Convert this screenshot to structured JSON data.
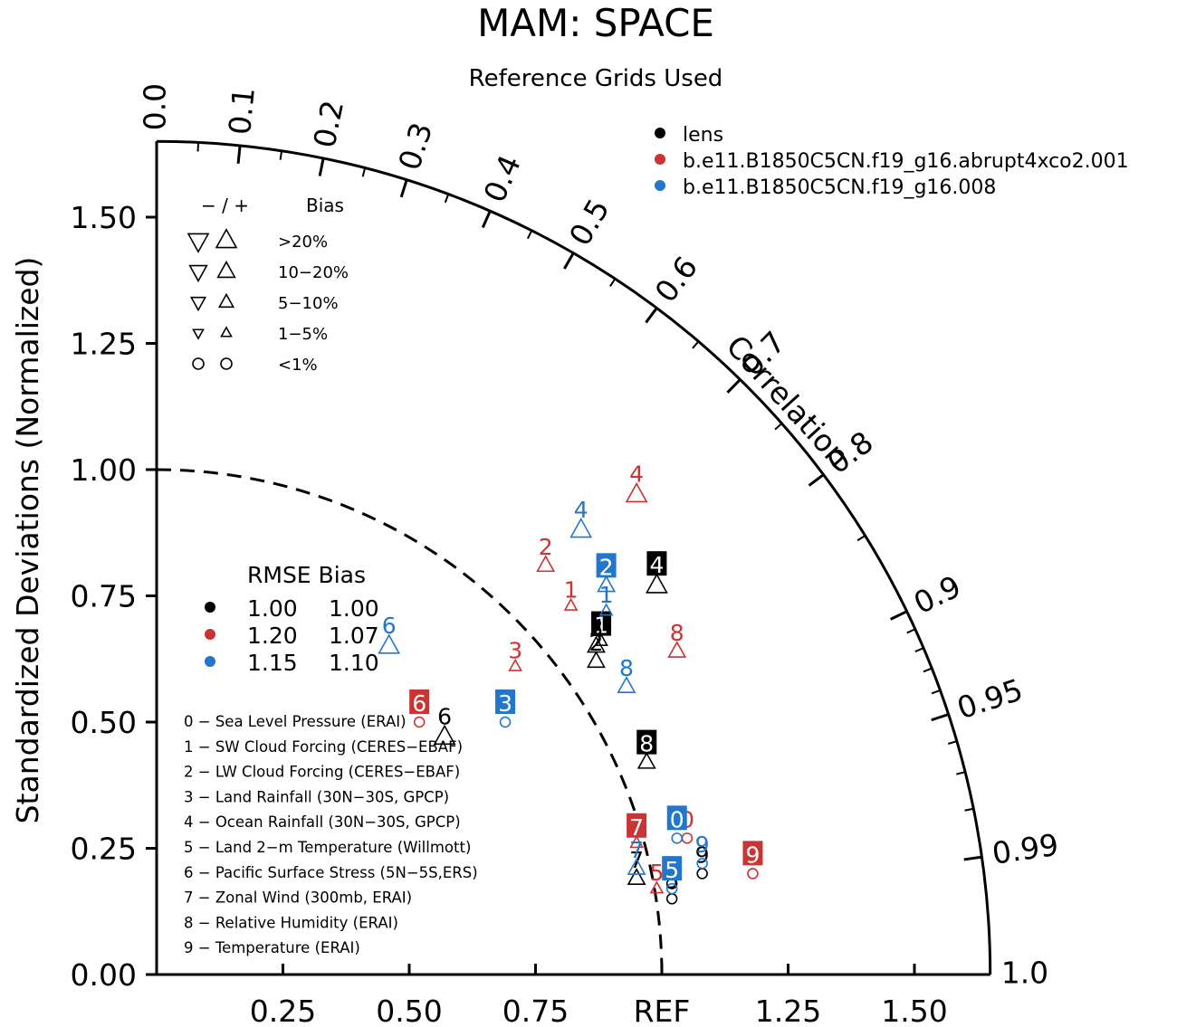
{
  "chart_data": {
    "type": "scatter",
    "title": "MAM: SPACE",
    "subtitle": "Reference Grids Used",
    "ylabel": "Standardized Deviations (Normalized)",
    "correlation_label": "Correlation",
    "ref_label": "REF",
    "ylim": [
      0,
      1.65
    ],
    "xlim": [
      0,
      1.65
    ],
    "y_ticks": [
      "0.00",
      "0.25",
      "0.50",
      "0.75",
      "1.00",
      "1.25",
      "1.50"
    ],
    "x_ticks": [
      "0.25",
      "0.50",
      "0.75",
      "1.25",
      "1.50"
    ],
    "correlation_ticks": [
      "0.0",
      "0.1",
      "0.2",
      "0.3",
      "0.4",
      "0.5",
      "0.6",
      "0.7",
      "0.8",
      "0.9",
      "0.95",
      "0.99",
      "1.0"
    ],
    "ref_radius": 1.0,
    "colors": {
      "lens": "#000000",
      "abrupt": "#cc3333",
      "ctrl": "#2277cc"
    },
    "legend": [
      {
        "label": "lens",
        "color": "#000000"
      },
      {
        "label": "b.e11.B1850C5CN.f19_g16.abrupt4xco2.001",
        "color": "#cc3333"
      },
      {
        "label": "b.e11.B1850C5CN.f19_g16.008",
        "color": "#2277cc"
      }
    ],
    "bias_legend": {
      "header_sign": "−  /  +",
      "header_label": "Bias",
      "rows": [
        {
          "label": ">20%",
          "symbol": "tri",
          "size": 1.0
        },
        {
          "label": "10−20%",
          "symbol": "tri",
          "size": 0.85
        },
        {
          "label": "5−10%",
          "symbol": "tri",
          "size": 0.7
        },
        {
          "label": "1−5%",
          "symbol": "tri",
          "size": 0.5
        },
        {
          "label": "<1%",
          "symbol": "circle",
          "size": 0.7
        }
      ]
    },
    "rmse_table": {
      "header": "RMSE Bias",
      "rows": [
        {
          "color": "#000000",
          "rmse": "1.00",
          "bias": "1.00"
        },
        {
          "color": "#cc3333",
          "rmse": "1.20",
          "bias": "1.07"
        },
        {
          "color": "#2277cc",
          "rmse": "1.15",
          "bias": "1.10"
        }
      ]
    },
    "variables": [
      "0 − Sea Level Pressure (ERAI)",
      "1 − SW Cloud Forcing (CERES−EBAF)",
      "2 − LW Cloud Forcing (CERES−EBAF)",
      "3 − Land Rainfall (30N−30S, GPCP)",
      "4 − Ocean Rainfall (30N−30S, GPCP)",
      "5 − Land 2−m Temperature (Willmott)",
      "6 − Pacific Surface Stress (5N−5S,ERS)",
      "7 − Zonal Wind (300mb, ERAI)",
      "8 − Relative Humidity (ERAI)",
      "9 − Temperature (ERAI)"
    ],
    "series": [
      {
        "key": "lens",
        "points": [
          {
            "label": "0",
            "x": 1.02,
            "y": 0.18,
            "marker": "circle",
            "bias": "-",
            "size": 0.7,
            "boxed": false
          },
          {
            "label": "1",
            "x": 0.88,
            "y": 0.66,
            "marker": "tri",
            "bias": "+",
            "size": 0.5,
            "boxed": true
          },
          {
            "label": "2",
            "x": 0.87,
            "y": 0.62,
            "marker": "tri",
            "bias": "+",
            "size": 0.7,
            "boxed": false
          },
          {
            "label": "3",
            "x": 0.87,
            "y": 0.65,
            "marker": "tri",
            "bias": "+",
            "size": 0.7,
            "boxed": false
          },
          {
            "label": "4",
            "x": 0.99,
            "y": 0.77,
            "marker": "tri",
            "bias": "+",
            "size": 0.85,
            "boxed": true
          },
          {
            "label": "5",
            "x": 1.02,
            "y": 0.15,
            "marker": "circle",
            "bias": "-",
            "size": 0.7,
            "boxed": false
          },
          {
            "label": "6",
            "x": 0.57,
            "y": 0.47,
            "marker": "tri",
            "bias": "+",
            "size": 0.85,
            "boxed": false
          },
          {
            "label": "7",
            "x": 0.95,
            "y": 0.19,
            "marker": "tri",
            "bias": "+",
            "size": 0.7,
            "boxed": false
          },
          {
            "label": "8",
            "x": 0.97,
            "y": 0.42,
            "marker": "tri",
            "bias": "+",
            "size": 0.7,
            "boxed": true
          },
          {
            "label": "9",
            "x": 1.08,
            "y": 0.2,
            "marker": "circle",
            "bias": "-",
            "size": 0.7,
            "boxed": false
          }
        ]
      },
      {
        "key": "abrupt",
        "points": [
          {
            "label": "0",
            "x": 1.05,
            "y": 0.27,
            "marker": "circle",
            "bias": "-",
            "size": 0.7,
            "boxed": false
          },
          {
            "label": "1",
            "x": 0.82,
            "y": 0.73,
            "marker": "tri",
            "bias": "+",
            "size": 0.5,
            "boxed": false
          },
          {
            "label": "2",
            "x": 0.77,
            "y": 0.81,
            "marker": "tri",
            "bias": "+",
            "size": 0.7,
            "boxed": false
          },
          {
            "label": "3",
            "x": 0.71,
            "y": 0.61,
            "marker": "tri",
            "bias": "+",
            "size": 0.5,
            "boxed": false
          },
          {
            "label": "4",
            "x": 0.95,
            "y": 0.95,
            "marker": "tri",
            "bias": "+",
            "size": 0.85,
            "boxed": false
          },
          {
            "label": "5",
            "x": 0.99,
            "y": 0.17,
            "marker": "tri",
            "bias": "+",
            "size": 0.5,
            "boxed": false
          },
          {
            "label": "6",
            "x": 0.52,
            "y": 0.5,
            "marker": "circle",
            "bias": "-",
            "size": 0.7,
            "boxed": true
          },
          {
            "label": "7",
            "x": 0.95,
            "y": 0.26,
            "marker": "tri",
            "bias": "+",
            "size": 0.5,
            "boxed": true
          },
          {
            "label": "8",
            "x": 1.03,
            "y": 0.64,
            "marker": "tri",
            "bias": "+",
            "size": 0.7,
            "boxed": false
          },
          {
            "label": "9",
            "x": 1.18,
            "y": 0.2,
            "marker": "circle",
            "bias": "-",
            "size": 0.7,
            "boxed": true
          }
        ]
      },
      {
        "key": "ctrl",
        "points": [
          {
            "label": "0",
            "x": 1.03,
            "y": 0.27,
            "marker": "circle",
            "bias": "-",
            "size": 0.7,
            "boxed": true
          },
          {
            "label": "1",
            "x": 0.89,
            "y": 0.72,
            "marker": "tri",
            "bias": "+",
            "size": 0.5,
            "boxed": false
          },
          {
            "label": "2",
            "x": 0.89,
            "y": 0.77,
            "marker": "tri",
            "bias": "+",
            "size": 0.7,
            "boxed": true
          },
          {
            "label": "3",
            "x": 0.69,
            "y": 0.5,
            "marker": "circle",
            "bias": "-",
            "size": 0.7,
            "boxed": true
          },
          {
            "label": "4",
            "x": 0.84,
            "y": 0.88,
            "marker": "tri",
            "bias": "+",
            "size": 0.85,
            "boxed": false
          },
          {
            "label": "5",
            "x": 1.02,
            "y": 0.17,
            "marker": "circle",
            "bias": "-",
            "size": 0.7,
            "boxed": true
          },
          {
            "label": "6",
            "x": 0.46,
            "y": 0.65,
            "marker": "tri",
            "bias": "+",
            "size": 0.85,
            "boxed": false
          },
          {
            "label": "7",
            "x": 0.95,
            "y": 0.21,
            "marker": "tri",
            "bias": "+",
            "size": 0.7,
            "boxed": false
          },
          {
            "label": "8",
            "x": 0.93,
            "y": 0.57,
            "marker": "tri",
            "bias": "+",
            "size": 0.7,
            "boxed": false
          },
          {
            "label": "9",
            "x": 1.08,
            "y": 0.22,
            "marker": "circle",
            "bias": "-",
            "size": 0.7,
            "boxed": false
          }
        ]
      }
    ]
  }
}
